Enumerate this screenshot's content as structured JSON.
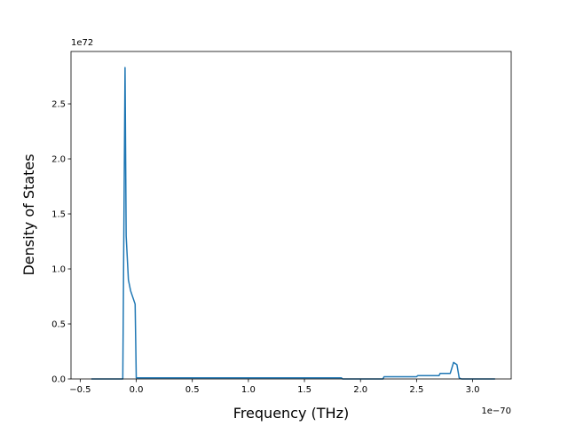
{
  "chart_data": {
    "type": "line",
    "xlabel": "Frequency (THz)",
    "ylabel": "Density of States",
    "x_offset_label": "1e−70",
    "y_offset_label": "1e72",
    "x": [
      -0.4,
      -0.12,
      -0.1,
      -0.09,
      -0.07,
      -0.05,
      -0.01,
      0.0,
      1.83,
      1.84,
      2.2,
      2.21,
      2.5,
      2.51,
      2.7,
      2.71,
      2.8,
      2.83,
      2.86,
      2.88,
      2.9,
      3.2
    ],
    "series": [
      {
        "name": "dos",
        "color": "#1f77b4",
        "values": [
          0,
          0,
          2.83,
          1.3,
          0.9,
          0.8,
          0.68,
          0.01,
          0.01,
          0,
          0,
          0.02,
          0.02,
          0.03,
          0.03,
          0.05,
          0.05,
          0.15,
          0.13,
          0.01,
          0,
          0
        ]
      }
    ],
    "xlim": [
      -0.582,
      3.344
    ],
    "ylim": [
      0,
      2.976
    ],
    "xticks": [
      {
        "value": -0.5,
        "label": "−0.5"
      },
      {
        "value": 0,
        "label": "0.0"
      },
      {
        "value": 0.5,
        "label": "0.5"
      },
      {
        "value": 1,
        "label": "1.0"
      },
      {
        "value": 1.5,
        "label": "1.5"
      },
      {
        "value": 2,
        "label": "2.0"
      },
      {
        "value": 2.5,
        "label": "2.5"
      },
      {
        "value": 3,
        "label": "3.0"
      }
    ],
    "yticks": [
      {
        "value": 0,
        "label": "0.0"
      },
      {
        "value": 0.5,
        "label": "0.5"
      },
      {
        "value": 1,
        "label": "1.0"
      },
      {
        "value": 1.5,
        "label": "1.5"
      },
      {
        "value": 2,
        "label": "2.0"
      },
      {
        "value": 2.5,
        "label": "2.5"
      }
    ],
    "grid": false
  }
}
